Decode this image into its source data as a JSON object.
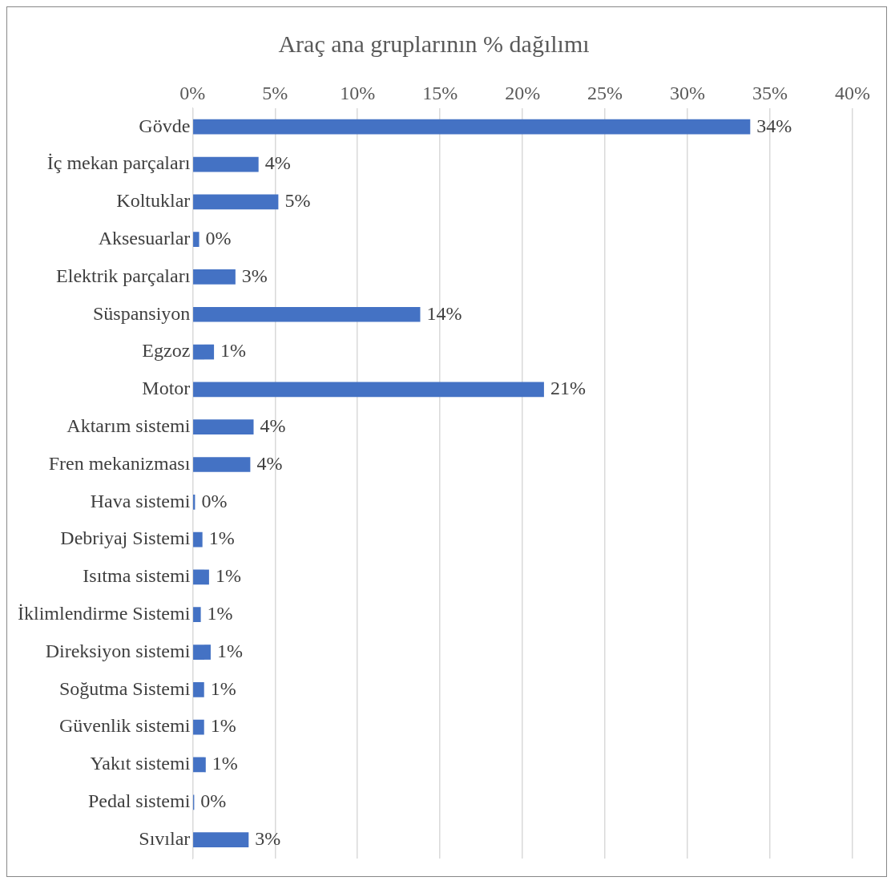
{
  "chart_data": {
    "type": "bar",
    "orientation": "horizontal",
    "title": "Araç ana gruplarının % dağılımı",
    "categories": [
      "Gövde",
      "İç mekan parçaları",
      "Koltuklar",
      "Aksesuarlar",
      "Elektrik parçaları",
      "Süspansiyon",
      "Egzoz",
      "Motor",
      "Aktarım sistemi",
      "Fren mekanizması",
      "Hava sistemi",
      "Debriyaj Sistemi",
      "Isıtma sistemi",
      "İklimlendirme Sistemi",
      "Direksiyon sistemi",
      "Soğutma Sistemi",
      "Güvenlik sistemi",
      "Yakıt sistemi",
      "Pedal sistemi",
      "Sıvılar"
    ],
    "values": [
      33.8,
      4.0,
      5.2,
      0.4,
      2.6,
      13.8,
      1.3,
      21.3,
      3.7,
      3.5,
      0.15,
      0.6,
      1.0,
      0.5,
      1.1,
      0.7,
      0.7,
      0.8,
      0.1,
      3.4
    ],
    "value_labels": [
      "34%",
      "4%",
      "5%",
      "0%",
      "3%",
      "14%",
      "1%",
      "21%",
      "4%",
      "4%",
      "0%",
      "1%",
      "1%",
      "1%",
      "1%",
      "1%",
      "1%",
      "1%",
      "0%",
      "3%"
    ],
    "color": "#4472c4",
    "xlim": [
      0,
      40
    ],
    "xticks": [
      {
        "value": 0,
        "label": "0%"
      },
      {
        "value": 5,
        "label": "5%"
      },
      {
        "value": 10,
        "label": "10%"
      },
      {
        "value": 15,
        "label": "15%"
      },
      {
        "value": 20,
        "label": "20%"
      },
      {
        "value": 25,
        "label": "25%"
      },
      {
        "value": 30,
        "label": "30%"
      },
      {
        "value": 35,
        "label": "35%"
      },
      {
        "value": 40,
        "label": "40%"
      }
    ],
    "grid": "x",
    "legend": false
  }
}
